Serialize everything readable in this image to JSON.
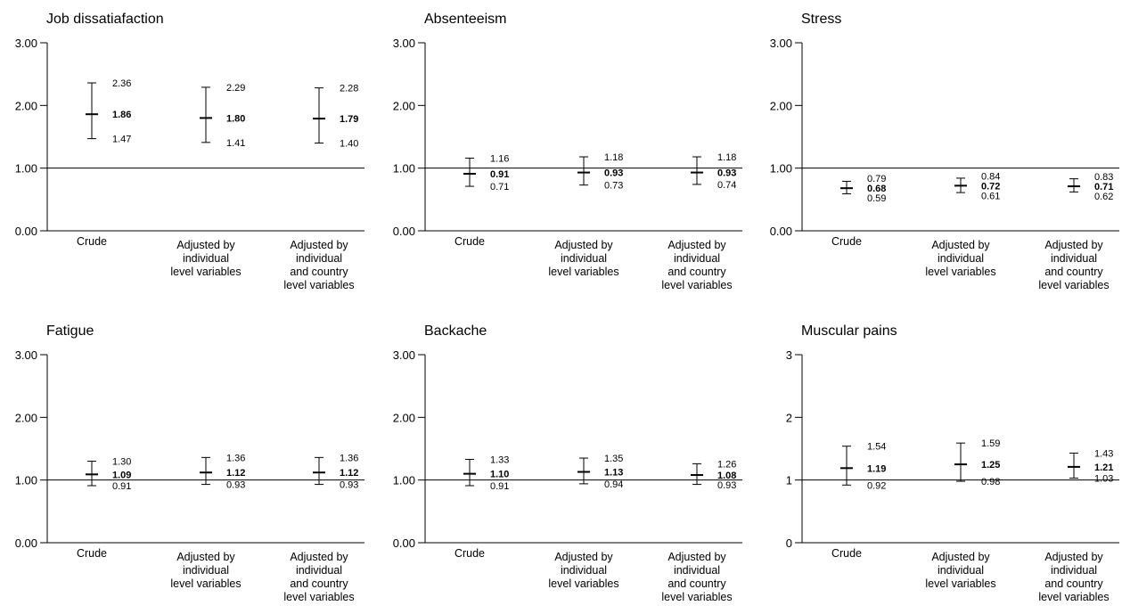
{
  "chart_data": [
    {
      "type": "errorbar",
      "title": "Job dissatiafaction",
      "categories": [
        "Crude",
        "Adjusted by individual level variables",
        "Adjusted by individual and country level variables"
      ],
      "category_lines": [
        [
          "Crude"
        ],
        [
          "Adjusted by",
          "individual",
          "level variables"
        ],
        [
          "Adjusted by",
          "individual",
          "and country",
          "level variables"
        ]
      ],
      "ylim": [
        0,
        3
      ],
      "yticks": [
        0,
        1,
        2,
        3
      ],
      "ytick_labels": [
        "0.00",
        "1.00",
        "2.00",
        "3.00"
      ],
      "reference_line": 1,
      "estimates": [
        1.86,
        1.8,
        1.79
      ],
      "lower": [
        1.47,
        1.41,
        1.4
      ],
      "upper": [
        2.36,
        2.29,
        2.28
      ],
      "estimate_labels": [
        "1.86",
        "1.80",
        "1.79"
      ],
      "lower_labels": [
        "1.47",
        "1.41",
        "1.40"
      ],
      "upper_labels": [
        "2.36",
        "2.29",
        "2.28"
      ]
    },
    {
      "type": "errorbar",
      "title": "Absenteeism",
      "categories": [
        "Crude",
        "Adjusted by individual level variables",
        "Adjusted by individual and country level variables"
      ],
      "category_lines": [
        [
          "Crude"
        ],
        [
          "Adjusted by",
          "individual",
          "level variables"
        ],
        [
          "Adjusted by",
          "individual",
          "and country",
          "level variables"
        ]
      ],
      "ylim": [
        0,
        3
      ],
      "yticks": [
        0,
        1,
        2,
        3
      ],
      "ytick_labels": [
        "0.00",
        "1.00",
        "2.00",
        "3.00"
      ],
      "reference_line": 1,
      "estimates": [
        0.91,
        0.93,
        0.93
      ],
      "lower": [
        0.71,
        0.73,
        0.74
      ],
      "upper": [
        1.16,
        1.18,
        1.18
      ],
      "estimate_labels": [
        "0.91",
        "0.93",
        "0.93"
      ],
      "lower_labels": [
        "0.71",
        "0.73",
        "0.74"
      ],
      "upper_labels": [
        "1.16",
        "1.18",
        "1.18"
      ]
    },
    {
      "type": "errorbar",
      "title": "Stress",
      "categories": [
        "Crude",
        "Adjusted by individual level variables",
        "Adjusted by individual and country level variables"
      ],
      "category_lines": [
        [
          "Crude"
        ],
        [
          "Adjusted by",
          "individual",
          "level variables"
        ],
        [
          "Adjusted by",
          "individual",
          "and country",
          "level variables"
        ]
      ],
      "ylim": [
        0,
        3
      ],
      "yticks": [
        0,
        1,
        2,
        3
      ],
      "ytick_labels": [
        "0.00",
        "1.00",
        "2.00",
        "3.00"
      ],
      "reference_line": 1,
      "estimates": [
        0.68,
        0.72,
        0.71
      ],
      "lower": [
        0.59,
        0.61,
        0.62
      ],
      "upper": [
        0.79,
        0.84,
        0.83
      ],
      "estimate_labels": [
        "0.68",
        "0.72",
        "0.71"
      ],
      "lower_labels": [
        "0.59",
        "0.61",
        "0.62"
      ],
      "upper_labels": [
        "0.79",
        "0.84",
        "0.83"
      ]
    },
    {
      "type": "errorbar",
      "title": "Fatigue",
      "categories": [
        "Crude",
        "Adjusted by individual level variables",
        "Adjusted by individual and country level variables"
      ],
      "category_lines": [
        [
          "Crude"
        ],
        [
          "Adjusted by",
          "individual",
          "level variables"
        ],
        [
          "Adjusted by",
          "individual",
          "and country",
          "level variables"
        ]
      ],
      "ylim": [
        0,
        3
      ],
      "yticks": [
        0,
        1,
        2,
        3
      ],
      "ytick_labels": [
        "0.00",
        "1.00",
        "2.00",
        "3.00"
      ],
      "reference_line": 1,
      "estimates": [
        1.09,
        1.12,
        1.12
      ],
      "lower": [
        0.91,
        0.93,
        0.93
      ],
      "upper": [
        1.3,
        1.36,
        1.36
      ],
      "estimate_labels": [
        "1.09",
        "1.12",
        "1.12"
      ],
      "lower_labels": [
        "0.91",
        "0.93",
        "0.93"
      ],
      "upper_labels": [
        "1.30",
        "1.36",
        "1.36"
      ]
    },
    {
      "type": "errorbar",
      "title": "Backache",
      "categories": [
        "Crude",
        "Adjusted by individual level variables",
        "Adjusted by individual and country level variables"
      ],
      "category_lines": [
        [
          "Crude"
        ],
        [
          "Adjusted by",
          "individual",
          "level variables"
        ],
        [
          "Adjusted by",
          "individual",
          "and country",
          "level variables"
        ]
      ],
      "ylim": [
        0,
        3
      ],
      "yticks": [
        0,
        1,
        2,
        3
      ],
      "ytick_labels": [
        "0.00",
        "1.00",
        "2.00",
        "3.00"
      ],
      "reference_line": 1,
      "estimates": [
        1.1,
        1.13,
        1.08
      ],
      "lower": [
        0.91,
        0.94,
        0.93
      ],
      "upper": [
        1.33,
        1.35,
        1.26
      ],
      "estimate_labels": [
        "1.10",
        "1.13",
        "1.08"
      ],
      "lower_labels": [
        "0.91",
        "0.94",
        "0.93"
      ],
      "upper_labels": [
        "1.33",
        "1.35",
        "1.26"
      ]
    },
    {
      "type": "errorbar",
      "title": "Muscular pains",
      "categories": [
        "Crude",
        "Adjusted by individual level variables",
        "Adjusted by individual and country level variables"
      ],
      "category_lines": [
        [
          "Crude"
        ],
        [
          "Adjusted by",
          "individual",
          "level variables"
        ],
        [
          "Adjusted by",
          "individual",
          "and country",
          "level variables"
        ]
      ],
      "ylim": [
        0,
        3
      ],
      "yticks": [
        0,
        1,
        2,
        3
      ],
      "ytick_labels": [
        "0",
        "1",
        "2",
        "3"
      ],
      "reference_line": 1,
      "estimates": [
        1.19,
        1.25,
        1.21
      ],
      "lower": [
        0.92,
        0.98,
        1.03
      ],
      "upper": [
        1.54,
        1.59,
        1.43
      ],
      "estimate_labels": [
        "1.19",
        "1.25",
        "1.21"
      ],
      "lower_labels": [
        "0.92",
        "0.98",
        "1.03"
      ],
      "upper_labels": [
        "1.54",
        "1.59",
        "1.43"
      ]
    }
  ]
}
